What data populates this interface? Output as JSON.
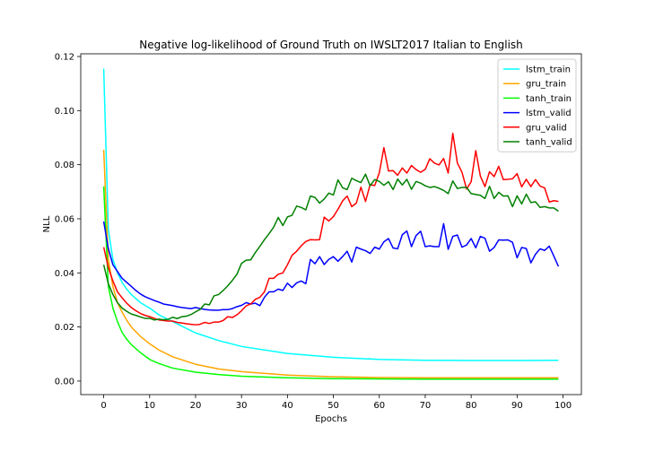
{
  "chart_data": {
    "type": "line",
    "title": "Negative log-likelihood of Ground Truth on IWSLT2017 Italian to English",
    "xlabel": "Epochs",
    "ylabel": "NLL",
    "xlim": [
      -5,
      104
    ],
    "ylim": [
      -0.005,
      0.121
    ],
    "xticks": [
      0,
      10,
      20,
      30,
      40,
      50,
      60,
      70,
      80,
      90,
      100
    ],
    "yticks": [
      0.0,
      0.02,
      0.04,
      0.06,
      0.08,
      0.1,
      0.12
    ],
    "ytick_labels": [
      "0.00",
      "0.02",
      "0.04",
      "0.06",
      "0.08",
      "0.10",
      "0.12"
    ],
    "legend_position": "top-right",
    "grid": false,
    "series": [
      {
        "name": "lstm_train",
        "color": "#00ffff",
        "x": [
          0,
          1,
          2,
          3,
          4,
          5,
          6,
          8,
          10,
          12,
          15,
          20,
          25,
          30,
          40,
          50,
          60,
          70,
          80,
          90,
          99
        ],
        "y": [
          0.1155,
          0.056,
          0.045,
          0.04,
          0.0365,
          0.034,
          0.032,
          0.029,
          0.027,
          0.0245,
          0.022,
          0.0178,
          0.015,
          0.0128,
          0.0102,
          0.0088,
          0.008,
          0.0077,
          0.0076,
          0.0076,
          0.0077
        ]
      },
      {
        "name": "gru_train",
        "color": "#ffa500",
        "x": [
          0,
          1,
          2,
          3,
          4,
          5,
          6,
          8,
          10,
          12,
          15,
          20,
          25,
          30,
          40,
          50,
          60,
          70,
          80,
          90,
          99
        ],
        "y": [
          0.0855,
          0.045,
          0.035,
          0.029,
          0.0255,
          0.0225,
          0.02,
          0.0165,
          0.0138,
          0.0115,
          0.009,
          0.0062,
          0.0045,
          0.0035,
          0.0022,
          0.0016,
          0.0013,
          0.0012,
          0.0012,
          0.0012,
          0.0012
        ]
      },
      {
        "name": "tanh_train",
        "color": "#00ff00",
        "x": [
          0,
          1,
          2,
          3,
          4,
          5,
          6,
          8,
          10,
          12,
          15,
          20,
          25,
          30,
          40,
          50,
          60,
          70,
          80,
          90,
          99
        ],
        "y": [
          0.072,
          0.035,
          0.027,
          0.022,
          0.018,
          0.0155,
          0.0135,
          0.0105,
          0.008,
          0.0065,
          0.0048,
          0.0033,
          0.0024,
          0.0018,
          0.0012,
          0.0009,
          0.0008,
          0.0007,
          0.0007,
          0.0007,
          0.0007
        ]
      },
      {
        "name": "lstm_valid",
        "color": "#0000ff",
        "x": [
          0,
          1,
          2,
          3,
          4,
          5,
          6,
          7,
          8,
          9,
          10,
          11,
          12,
          13,
          14,
          15,
          16,
          17,
          18,
          19,
          20,
          21,
          22,
          23,
          24,
          25,
          26,
          27,
          28,
          29,
          30,
          31,
          32,
          33,
          34,
          35,
          36,
          37,
          38,
          39,
          40,
          41,
          42,
          43,
          44,
          45,
          46,
          47,
          48,
          49,
          50,
          51,
          52,
          53,
          54,
          55,
          56,
          57,
          58,
          59,
          60,
          61,
          62,
          63,
          64,
          65,
          66,
          67,
          68,
          69,
          70,
          71,
          72,
          73,
          74,
          75,
          76,
          77,
          78,
          79,
          80,
          81,
          82,
          83,
          84,
          85,
          86,
          87,
          88,
          89,
          90,
          91,
          92,
          93,
          94,
          95,
          96,
          97,
          98,
          99
        ],
        "y": [
          0.059,
          0.049,
          0.043,
          0.0405,
          0.038,
          0.0365,
          0.035,
          0.0335,
          0.0322,
          0.0312,
          0.0305,
          0.0298,
          0.0292,
          0.0285,
          0.0282,
          0.0279,
          0.0275,
          0.0272,
          0.027,
          0.0268,
          0.0272,
          0.0268,
          0.0265,
          0.0263,
          0.0262,
          0.0262,
          0.0264,
          0.0264,
          0.0268,
          0.0275,
          0.028,
          0.029,
          0.0285,
          0.0288,
          0.0279,
          0.031,
          0.033,
          0.033,
          0.034,
          0.0335,
          0.0362,
          0.0346,
          0.0363,
          0.037,
          0.036,
          0.045,
          0.0434,
          0.046,
          0.0431,
          0.045,
          0.046,
          0.0443,
          0.046,
          0.048,
          0.044,
          0.0495,
          0.0488,
          0.0482,
          0.0472,
          0.0495,
          0.0488,
          0.0515,
          0.0527,
          0.0492,
          0.0489,
          0.0541,
          0.0555,
          0.0497,
          0.0538,
          0.0554,
          0.0497,
          0.05,
          0.0497,
          0.0497,
          0.0582,
          0.0487,
          0.0535,
          0.054,
          0.0495,
          0.0503,
          0.0527,
          0.0493,
          0.0535,
          0.0528,
          0.048,
          0.0494,
          0.0522,
          0.0521,
          0.0522,
          0.0513,
          0.0456,
          0.0494,
          0.049,
          0.0437,
          0.0469,
          0.0489,
          0.0483,
          0.0499,
          0.0462,
          0.0424
        ]
      },
      {
        "name": "gru_valid",
        "color": "#ff0000",
        "x": [
          0,
          1,
          2,
          3,
          4,
          5,
          6,
          7,
          8,
          9,
          10,
          11,
          12,
          13,
          14,
          15,
          16,
          17,
          18,
          19,
          20,
          21,
          22,
          23,
          24,
          25,
          26,
          27,
          28,
          29,
          30,
          31,
          32,
          33,
          34,
          35,
          36,
          37,
          38,
          39,
          40,
          41,
          42,
          43,
          44,
          45,
          46,
          47,
          48,
          49,
          50,
          51,
          52,
          53,
          54,
          55,
          56,
          57,
          58,
          59,
          60,
          61,
          62,
          63,
          64,
          65,
          66,
          67,
          68,
          69,
          70,
          71,
          72,
          73,
          74,
          75,
          76,
          77,
          78,
          79,
          80,
          81,
          82,
          83,
          84,
          85,
          86,
          87,
          88,
          89,
          90,
          91,
          92,
          93,
          94,
          95,
          96,
          97,
          98,
          99
        ],
        "y": [
          0.0495,
          0.042,
          0.037,
          0.033,
          0.0308,
          0.0288,
          0.0272,
          0.026,
          0.025,
          0.0243,
          0.0238,
          0.0232,
          0.0226,
          0.0224,
          0.0222,
          0.0222,
          0.0217,
          0.0215,
          0.0212,
          0.021,
          0.0208,
          0.021,
          0.0217,
          0.0213,
          0.0218,
          0.0218,
          0.0224,
          0.0238,
          0.0235,
          0.0245,
          0.026,
          0.0278,
          0.0285,
          0.0302,
          0.031,
          0.033,
          0.038,
          0.038,
          0.0395,
          0.04,
          0.043,
          0.0465,
          0.048,
          0.05,
          0.0516,
          0.0523,
          0.0522,
          0.0523,
          0.0606,
          0.0592,
          0.0608,
          0.0635,
          0.0666,
          0.0684,
          0.0645,
          0.0658,
          0.0717,
          0.0664,
          0.0726,
          0.0723,
          0.077,
          0.0863,
          0.0777,
          0.0778,
          0.0761,
          0.0788,
          0.0769,
          0.0797,
          0.0782,
          0.0772,
          0.0783,
          0.0822,
          0.0806,
          0.0799,
          0.0823,
          0.0769,
          0.0916,
          0.0806,
          0.0772,
          0.071,
          0.0737,
          0.0852,
          0.0758,
          0.0719,
          0.0774,
          0.0756,
          0.0794,
          0.0745,
          0.0746,
          0.0748,
          0.0767,
          0.0718,
          0.0746,
          0.0719,
          0.0745,
          0.0721,
          0.0714,
          0.0662,
          0.0667,
          0.0664
        ]
      },
      {
        "name": "tanh_valid",
        "color": "#008000",
        "x": [
          0,
          1,
          2,
          3,
          4,
          5,
          6,
          7,
          8,
          9,
          10,
          11,
          12,
          13,
          14,
          15,
          16,
          17,
          18,
          19,
          20,
          21,
          22,
          23,
          24,
          25,
          26,
          27,
          28,
          29,
          30,
          31,
          32,
          33,
          34,
          35,
          36,
          37,
          38,
          39,
          40,
          41,
          42,
          43,
          44,
          45,
          46,
          47,
          48,
          49,
          50,
          51,
          52,
          53,
          54,
          55,
          56,
          57,
          58,
          59,
          60,
          61,
          62,
          63,
          64,
          65,
          66,
          67,
          68,
          69,
          70,
          71,
          72,
          73,
          74,
          75,
          76,
          77,
          78,
          79,
          80,
          81,
          82,
          83,
          84,
          85,
          86,
          87,
          88,
          89,
          90,
          91,
          92,
          93,
          94,
          95,
          96,
          97,
          98,
          99
        ],
        "y": [
          0.043,
          0.036,
          0.032,
          0.029,
          0.027,
          0.0258,
          0.0248,
          0.0243,
          0.0237,
          0.0232,
          0.0232,
          0.0226,
          0.0229,
          0.0227,
          0.0228,
          0.0236,
          0.0231,
          0.0238,
          0.024,
          0.0246,
          0.0256,
          0.0265,
          0.0285,
          0.0282,
          0.0315,
          0.032,
          0.0335,
          0.0352,
          0.0372,
          0.0395,
          0.0435,
          0.0447,
          0.0448,
          0.0475,
          0.0498,
          0.0523,
          0.0545,
          0.0569,
          0.0605,
          0.0575,
          0.0607,
          0.0613,
          0.0647,
          0.0642,
          0.0633,
          0.0684,
          0.0679,
          0.0658,
          0.0673,
          0.0695,
          0.0688,
          0.0744,
          0.0715,
          0.0708,
          0.075,
          0.0741,
          0.0734,
          0.0765,
          0.0722,
          0.0745,
          0.0738,
          0.0724,
          0.0737,
          0.0708,
          0.0747,
          0.0725,
          0.0746,
          0.0709,
          0.0738,
          0.0732,
          0.0722,
          0.0716,
          0.0719,
          0.0713,
          0.0705,
          0.0693,
          0.074,
          0.0712,
          0.0716,
          0.0716,
          0.0693,
          0.069,
          0.0687,
          0.0675,
          0.072,
          0.0675,
          0.0698,
          0.0684,
          0.0685,
          0.0645,
          0.0685,
          0.0655,
          0.0691,
          0.066,
          0.0663,
          0.0642,
          0.0645,
          0.064,
          0.064,
          0.0628
        ]
      }
    ]
  }
}
